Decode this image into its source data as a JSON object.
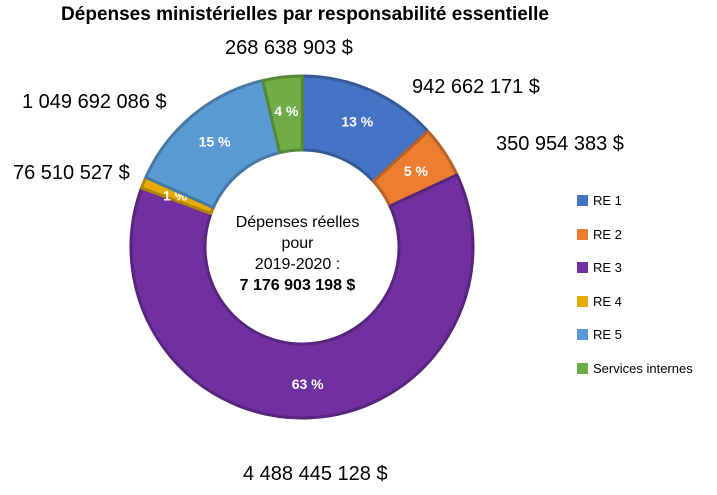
{
  "chart_data": {
    "type": "pie",
    "variant": "donut",
    "title": "Dépenses ministérielles par responsabilité essentielle",
    "center": {
      "line1": "Dépenses réelles",
      "line2": "pour",
      "line3": "2019-2020 :",
      "total": "7 176 903 198 $"
    },
    "slices": [
      {
        "name": "RE 1",
        "value": 942662171,
        "percent_label": "13 %",
        "amount_label": "942 662 171 $",
        "color": "#4472C4"
      },
      {
        "name": "RE 2",
        "value": 350954383,
        "percent_label": "5 %",
        "amount_label": "350 954 383 $",
        "color": "#ED7D31"
      },
      {
        "name": "RE 3",
        "value": 4488445128,
        "percent_label": "63 %",
        "amount_label": "4 488 445 128 $",
        "color": "#7030A0"
      },
      {
        "name": "RE 4",
        "value": 76510527,
        "percent_label": "1 %",
        "amount_label": "76 510 527 $",
        "color": "#E6AC00"
      },
      {
        "name": "RE 5",
        "value": 1049692086,
        "percent_label": "15 %",
        "amount_label": "1 049 692 086 $",
        "color": "#5B9BD5"
      },
      {
        "name": "Services internes",
        "value": 268638903,
        "percent_label": "4 %",
        "amount_label": "268 638 903 $",
        "color": "#70AD47"
      }
    ],
    "legend_position": "right"
  }
}
